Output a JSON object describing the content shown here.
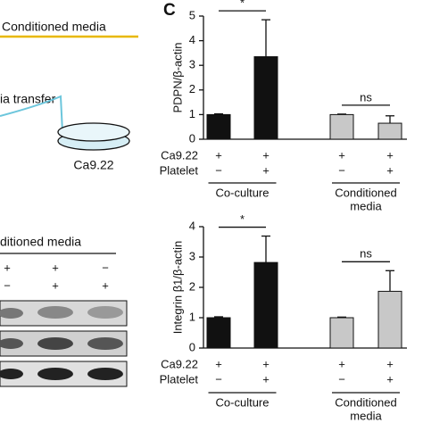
{
  "panel_a": {
    "title": "Conditioned media",
    "transfer": "ia transfer",
    "dish_label": "Ca9.22"
  },
  "panel_b": {
    "title": "ditioned media",
    "rows": [
      [
        "+",
        "+",
        "−"
      ],
      [
        "−",
        "+",
        "+"
      ]
    ]
  },
  "panel_label": "C",
  "chart_data": [
    {
      "type": "bar",
      "y_label": "PDPN/β-actin",
      "values": [
        1.0,
        3.35,
        1.0,
        0.65
      ],
      "errors": [
        0.03,
        1.5,
        0.02,
        0.3
      ],
      "colors": [
        "#111111",
        "#111111",
        "#c8c8c8",
        "#c8c8c8"
      ],
      "ylim": [
        0,
        5
      ],
      "yticks": [
        0,
        1,
        2,
        3,
        4,
        5
      ],
      "annotations": [
        "*",
        "ns"
      ],
      "rows": [
        {
          "label": "Ca9.22",
          "marks": [
            "+",
            "+",
            "+",
            "+"
          ]
        },
        {
          "label": "Platelet",
          "marks": [
            "−",
            "+",
            "−",
            "+"
          ]
        }
      ],
      "groups": [
        [
          "Co-culture"
        ],
        [
          "Conditioned",
          "media"
        ]
      ]
    },
    {
      "type": "bar",
      "y_label": "Integrin β1/β-actin",
      "values": [
        1.0,
        2.82,
        1.0,
        1.87
      ],
      "errors": [
        0.03,
        0.87,
        0.02,
        0.68
      ],
      "colors": [
        "#111111",
        "#111111",
        "#c8c8c8",
        "#c8c8c8"
      ],
      "ylim": [
        0,
        4
      ],
      "yticks": [
        0,
        1,
        2,
        3,
        4
      ],
      "annotations": [
        "*",
        "ns"
      ],
      "rows": [
        {
          "label": "Ca9.22",
          "marks": [
            "+",
            "+",
            "+",
            "+"
          ]
        },
        {
          "label": "Platelet",
          "marks": [
            "−",
            "+",
            "−",
            "+"
          ]
        }
      ],
      "groups": [
        [
          "Co-culture"
        ],
        [
          "Conditioned",
          "media"
        ]
      ]
    }
  ]
}
